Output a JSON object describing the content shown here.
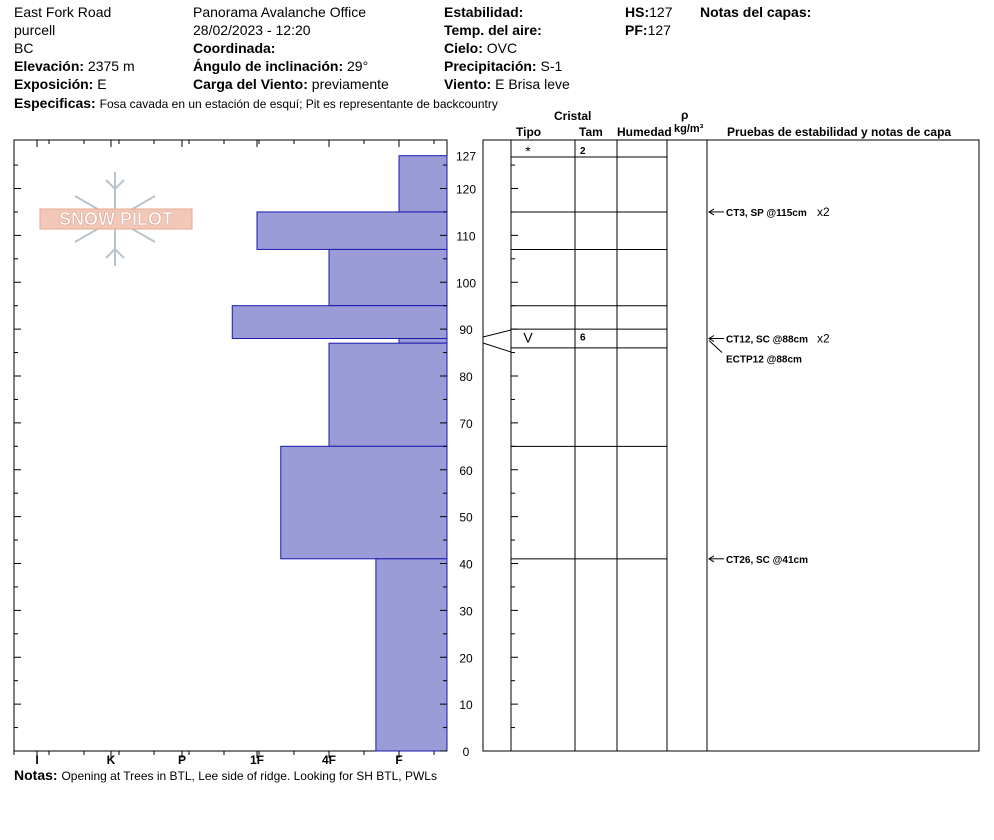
{
  "header": {
    "location": "East Fork Road",
    "range": "purcell",
    "region": "BC",
    "elevation_label": "Elevación:",
    "elevation_value": "2375 m",
    "aspect_label": "Exposición:",
    "aspect_value": "E",
    "specifics_label": "Especificas:",
    "specifics_value": "Fosa cavada en un estación de esquí; Pit es representante de backcountry",
    "office": "Panorama Avalanche Office",
    "datetime": "28/02/2023 - 12:20",
    "coord_label": "Coordinada:",
    "incline_label": "Ángulo de inclinación:",
    "incline_value": "29°",
    "wind_load_label": "Carga del Viento:",
    "wind_load_value": "previamente",
    "stability_label": "Estabilidad:",
    "air_temp_label": "Temp. del aire:",
    "sky_label": "Cielo:",
    "sky_value": "OVC",
    "precip_label": "Precipitación:",
    "precip_value": "S-1",
    "wind_label": "Viento:",
    "wind_value": "E Brisa leve",
    "hs_label": "HS:",
    "hs_value": "127",
    "pf_label": "PF:",
    "pf_value": "127",
    "layer_notes_label": "Notas del capas:"
  },
  "columns": {
    "crystal": "Cristal",
    "type": "Tipo",
    "size": "Tam",
    "humidity": "Humedad",
    "rho": "ρ",
    "density_unit": "kg/m³",
    "tests": "Pruebas de estabilidad y notas de capa"
  },
  "notes": {
    "label": "Notas:",
    "value": "Opening at Trees in BTL, Lee side of ridge.  Looking for SH BTL, PWLs"
  },
  "logo_text": "SNOW PILOT",
  "colors": {
    "hardness_fill": "#9b9bd8",
    "hardness_stroke": "#1a1ab0"
  },
  "chart_data": {
    "type": "bar",
    "orientation": "horizontal-profile",
    "y_axis": {
      "range": [
        0,
        127
      ],
      "ticks": [
        0,
        10,
        20,
        30,
        40,
        50,
        60,
        70,
        80,
        90,
        100,
        110,
        120,
        127
      ]
    },
    "x_axis": {
      "categories": [
        "I",
        "K",
        "P",
        "1F",
        "4F",
        "F"
      ],
      "direction": "reversed"
    },
    "layers": [
      {
        "top": 127,
        "bottom": 115,
        "hardness": "F"
      },
      {
        "top": 115,
        "bottom": 107,
        "hardness": "1F"
      },
      {
        "top": 107,
        "bottom": 95,
        "hardness": "4F"
      },
      {
        "top": 95,
        "bottom": 88,
        "hardness": "P+"
      },
      {
        "top": 88,
        "bottom": 87,
        "hardness": "F"
      },
      {
        "top": 87,
        "bottom": 65,
        "hardness": "4F"
      },
      {
        "top": 65,
        "bottom": 41,
        "hardness": "1F-"
      },
      {
        "top": 41,
        "bottom": 0,
        "hardness": "F+"
      }
    ],
    "hardness_index": {
      "F": 1,
      "F+": 1.33,
      "4F": 2,
      "1F-": 2.67,
      "1F": 3,
      "P+": 3.33,
      "P": 4,
      "K": 5,
      "I": 6
    },
    "layer_lines": [
      127,
      115,
      107,
      95,
      90,
      86,
      65,
      41
    ],
    "crystals": [
      {
        "depth": 127,
        "type": "*",
        "size": "2"
      },
      {
        "depth": 88,
        "type": "V",
        "size": "6"
      }
    ],
    "tests": [
      {
        "depth": 115,
        "label": "CT3, SP @115cm",
        "count": "x2"
      },
      {
        "depth": 88,
        "label": "CT12, SC @88cm",
        "count": "x2"
      },
      {
        "depth": 88,
        "label": "ECTP12 @88cm",
        "count": ""
      },
      {
        "depth": 41,
        "label": "CT26, SC @41cm",
        "count": ""
      }
    ]
  }
}
